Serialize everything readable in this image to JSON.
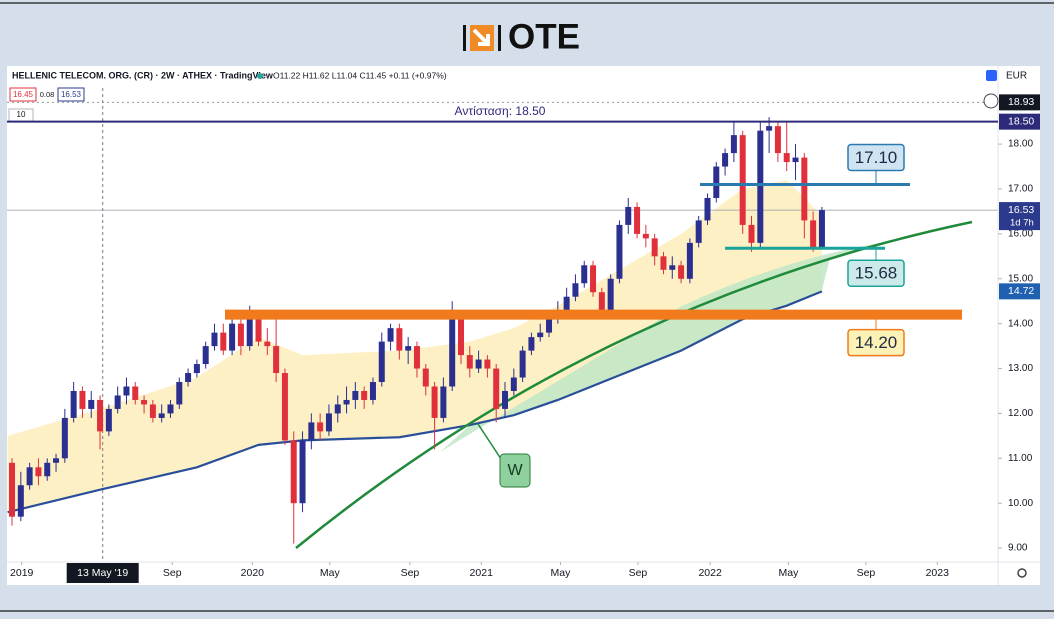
{
  "header": {
    "logo": "OTE"
  },
  "chart_data": {
    "type": "candlestick",
    "title": "HELLENIC TELECOM. ORG. (CR) · 2W · ATHEX · TradingView",
    "ohlc_readout": "O11.22 H11.62 L11.04 C11.45 +0.11 (+0.97%)",
    "buttons": [
      "16.45",
      "0.08",
      "16.53"
    ],
    "indicator_length": "10",
    "currency": "EUR",
    "up_color": "#2b2f8f",
    "down_color": "#e0303c",
    "candles": [
      [
        10.9,
        11.0,
        9.5,
        9.7
      ],
      [
        9.7,
        10.7,
        9.6,
        10.4
      ],
      [
        10.4,
        10.9,
        10.3,
        10.8
      ],
      [
        10.8,
        11.0,
        10.4,
        10.6
      ],
      [
        10.6,
        11.0,
        10.5,
        10.9
      ],
      [
        10.9,
        11.1,
        10.7,
        11.0
      ],
      [
        11.0,
        12.1,
        10.9,
        11.9
      ],
      [
        11.9,
        12.7,
        11.8,
        12.5
      ],
      [
        12.5,
        12.6,
        11.9,
        12.1
      ],
      [
        12.1,
        12.5,
        11.9,
        12.3
      ],
      [
        12.3,
        12.4,
        11.2,
        11.6
      ],
      [
        11.6,
        12.2,
        11.5,
        12.1
      ],
      [
        12.1,
        12.6,
        12.0,
        12.4
      ],
      [
        12.4,
        12.8,
        12.2,
        12.6
      ],
      [
        12.6,
        12.7,
        12.2,
        12.3
      ],
      [
        12.3,
        12.4,
        12.0,
        12.2
      ],
      [
        12.2,
        12.3,
        11.8,
        11.9
      ],
      [
        11.9,
        12.2,
        11.8,
        12.0
      ],
      [
        12.0,
        12.3,
        11.9,
        12.2
      ],
      [
        12.2,
        12.8,
        12.1,
        12.7
      ],
      [
        12.7,
        13.0,
        12.6,
        12.9
      ],
      [
        12.9,
        13.2,
        12.8,
        13.1
      ],
      [
        13.1,
        13.6,
        13.0,
        13.5
      ],
      [
        13.5,
        14.0,
        13.4,
        13.8
      ],
      [
        13.8,
        14.0,
        13.3,
        13.4
      ],
      [
        13.4,
        14.2,
        13.3,
        14.0
      ],
      [
        14.0,
        14.1,
        13.3,
        13.5
      ],
      [
        13.5,
        14.4,
        13.4,
        14.1
      ],
      [
        14.1,
        14.2,
        13.5,
        13.6
      ],
      [
        13.6,
        13.9,
        13.3,
        13.5
      ],
      [
        13.5,
        14.2,
        12.7,
        12.9
      ],
      [
        12.9,
        13.0,
        11.3,
        11.4
      ],
      [
        11.4,
        11.6,
        9.1,
        10.0
      ],
      [
        10.0,
        11.6,
        9.8,
        11.4
      ],
      [
        11.4,
        12.0,
        11.2,
        11.8
      ],
      [
        11.8,
        12.0,
        11.4,
        11.6
      ],
      [
        11.6,
        12.2,
        11.5,
        12.0
      ],
      [
        12.0,
        12.4,
        11.8,
        12.2
      ],
      [
        12.2,
        12.6,
        12.0,
        12.3
      ],
      [
        12.3,
        12.7,
        12.1,
        12.5
      ],
      [
        12.5,
        12.6,
        12.1,
        12.3
      ],
      [
        12.3,
        12.8,
        12.2,
        12.7
      ],
      [
        12.7,
        13.8,
        12.6,
        13.6
      ],
      [
        13.6,
        14.0,
        13.4,
        13.9
      ],
      [
        13.9,
        14.0,
        13.2,
        13.4
      ],
      [
        13.4,
        13.7,
        13.1,
        13.5
      ],
      [
        13.5,
        13.6,
        12.8,
        13.0
      ],
      [
        13.0,
        13.1,
        12.4,
        12.6
      ],
      [
        12.6,
        12.7,
        11.2,
        11.9
      ],
      [
        11.9,
        12.8,
        11.8,
        12.6
      ],
      [
        12.6,
        14.5,
        12.5,
        14.2
      ],
      [
        14.2,
        14.3,
        13.1,
        13.3
      ],
      [
        13.3,
        13.5,
        12.8,
        13.0
      ],
      [
        13.0,
        13.4,
        12.9,
        13.2
      ],
      [
        13.2,
        13.3,
        12.8,
        13.0
      ],
      [
        13.0,
        13.1,
        11.8,
        12.1
      ],
      [
        12.1,
        12.7,
        11.9,
        12.5
      ],
      [
        12.5,
        13.0,
        12.4,
        12.8
      ],
      [
        12.8,
        13.5,
        12.7,
        13.4
      ],
      [
        13.4,
        13.8,
        13.3,
        13.7
      ],
      [
        13.7,
        14.0,
        13.6,
        13.8
      ],
      [
        13.8,
        14.3,
        13.7,
        14.1
      ],
      [
        14.1,
        14.5,
        14.0,
        14.3
      ],
      [
        14.3,
        14.8,
        14.2,
        14.6
      ],
      [
        14.6,
        15.1,
        14.5,
        14.9
      ],
      [
        14.9,
        15.4,
        14.8,
        15.3
      ],
      [
        15.3,
        15.4,
        14.6,
        14.7
      ],
      [
        14.7,
        14.8,
        14.1,
        14.3
      ],
      [
        14.3,
        15.1,
        14.2,
        15.0
      ],
      [
        15.0,
        16.3,
        14.9,
        16.2
      ],
      [
        16.2,
        16.8,
        16.0,
        16.6
      ],
      [
        16.6,
        16.7,
        15.9,
        16.0
      ],
      [
        16.0,
        16.2,
        15.7,
        15.9
      ],
      [
        15.9,
        16.0,
        15.3,
        15.5
      ],
      [
        15.5,
        15.6,
        15.1,
        15.2
      ],
      [
        15.2,
        15.5,
        15.0,
        15.3
      ],
      [
        15.3,
        15.4,
        14.9,
        15.0
      ],
      [
        15.0,
        15.9,
        14.9,
        15.8
      ],
      [
        15.8,
        16.4,
        15.7,
        16.3
      ],
      [
        16.3,
        16.9,
        16.2,
        16.8
      ],
      [
        16.8,
        17.6,
        16.7,
        17.5
      ],
      [
        17.5,
        17.9,
        17.3,
        17.8
      ],
      [
        17.8,
        18.5,
        17.6,
        18.2
      ],
      [
        18.2,
        18.3,
        16.0,
        16.2
      ],
      [
        16.2,
        16.4,
        15.6,
        15.8
      ],
      [
        15.8,
        18.5,
        15.7,
        18.3
      ],
      [
        18.3,
        18.6,
        17.8,
        18.4
      ],
      [
        18.4,
        18.5,
        17.6,
        17.8
      ],
      [
        17.8,
        18.5,
        17.4,
        17.6
      ],
      [
        17.6,
        18.0,
        17.2,
        17.7
      ],
      [
        17.7,
        17.8,
        15.9,
        16.3
      ],
      [
        16.3,
        16.5,
        15.6,
        15.7
      ],
      [
        15.7,
        16.6,
        15.7,
        16.53
      ]
    ],
    "xlim": [
      -0.57,
      112
    ],
    "xticks": [
      {
        "value": 1.1,
        "label": "2019"
      },
      {
        "value": 18.2,
        "label": "Sep"
      },
      {
        "value": 27.3,
        "label": "2020"
      },
      {
        "value": 36.1,
        "label": "May"
      },
      {
        "value": 45.2,
        "label": "Sep"
      },
      {
        "value": 53.3,
        "label": "2021"
      },
      {
        "value": 62.3,
        "label": "May"
      },
      {
        "value": 71.1,
        "label": "Sep"
      },
      {
        "value": 79.3,
        "label": "2022"
      },
      {
        "value": 88.2,
        "label": "May"
      },
      {
        "value": 97,
        "label": "Sep"
      },
      {
        "value": 105.1,
        "label": "2023"
      }
    ],
    "ylim": [
      8.69,
      19.25
    ],
    "yticks": [
      {
        "value": 9,
        "label": "9.00"
      },
      {
        "value": 10,
        "label": "10.00"
      },
      {
        "value": 11,
        "label": "11.00"
      },
      {
        "value": 12,
        "label": "12.00"
      },
      {
        "value": 13,
        "label": "13.00"
      },
      {
        "value": 14,
        "label": "14.00"
      },
      {
        "value": 15,
        "label": "15.00"
      },
      {
        "value": 16,
        "label": "16.00"
      },
      {
        "value": 17,
        "label": "17.00"
      },
      {
        "value": 18,
        "label": "18.00"
      }
    ],
    "crosshair": {
      "x": 10.3,
      "label": "13 May '19"
    },
    "resistance": {
      "value": 18.5,
      "label": "Αντίσταση: 18.50",
      "color": "#2e2a7a"
    },
    "levels": [
      {
        "value": 17.1,
        "label": "17.10",
        "color": "#2a7ab0",
        "box_fill": "#cfe3f3"
      },
      {
        "value": 15.68,
        "label": "15.68",
        "color": "#1aa39a",
        "box_fill": "#cdeaea"
      },
      {
        "value": 14.2,
        "label": "14.20",
        "color": "#f07a1c",
        "box_fill": "#fdf2b5"
      }
    ],
    "price_markers": [
      {
        "value": 18.93,
        "label": "18.93",
        "color": "#131722"
      },
      {
        "value": 18.5,
        "label": "18.50",
        "color": "#2e2a7a"
      },
      {
        "value": 16.53,
        "label": "16.53",
        "countdown": "1d 7h",
        "color": "#2b3a8c"
      },
      {
        "value": 14.72,
        "label": "14.72",
        "color": "#2060b0"
      }
    ],
    "moving_average": {
      "color": "#2a4f9a",
      "x": [
        -0.5,
        10,
        21,
        28,
        33,
        44,
        52,
        57,
        62,
        69,
        76,
        83,
        88,
        92
      ],
      "values": [
        9.8,
        10.3,
        10.8,
        11.3,
        11.4,
        11.47,
        11.74,
        11.96,
        12.3,
        12.85,
        13.4,
        14.1,
        14.4,
        14.72
      ]
    },
    "band": {
      "color": "#fdf0c4",
      "x": [
        -0.5,
        10,
        21,
        28,
        33,
        44,
        52,
        57,
        62,
        69,
        76,
        83,
        88,
        92
      ],
      "upper": [
        11.5,
        12.1,
        12.8,
        13.7,
        13.3,
        13.4,
        13.6,
        13.9,
        14.4,
        15.2,
        16.0,
        17.0,
        17.2,
        16.4
      ]
    },
    "annotation": "W"
  }
}
